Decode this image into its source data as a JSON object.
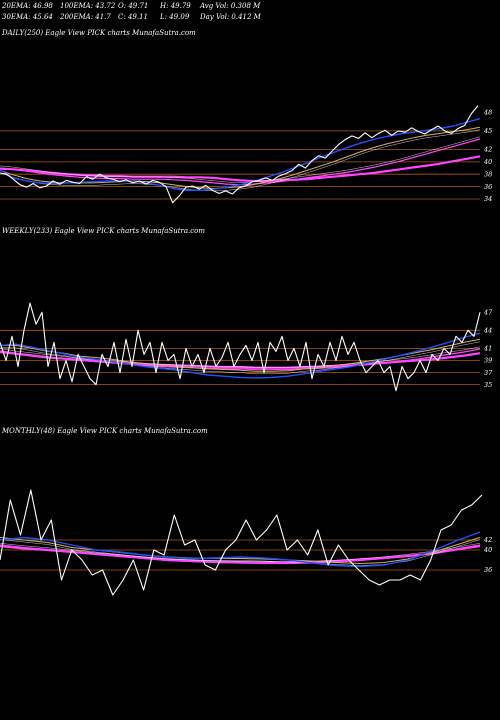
{
  "header": {
    "row1": [
      {
        "name": "20ema",
        "text": "20EMA: 46.98"
      },
      {
        "name": "100ema",
        "text": "100EMA: 43.72"
      },
      {
        "name": "open",
        "text": "O: 49.71"
      },
      {
        "name": "high",
        "text": "H: 49.79"
      },
      {
        "name": "avg-vol",
        "text": "Avg Vol: 0.308  M"
      }
    ],
    "row2": [
      {
        "name": "30ema",
        "text": "30EMA: 45.64"
      },
      {
        "name": "200ema",
        "text": "200EMA: 41.7"
      },
      {
        "name": "close",
        "text": "C: 49.11"
      },
      {
        "name": "low",
        "text": "L: 49.09"
      },
      {
        "name": "day-vol",
        "text": "Day Vol: 0.412  M"
      }
    ]
  },
  "colors": {
    "background": "#000000",
    "price": "#ffffff",
    "ema_short": "#2050ff",
    "ema_mid": "#d4b060",
    "ema_long": "#ff44ff",
    "ema_thin": "#ffffff",
    "level": "#b05a12"
  },
  "chart_data": [
    {
      "type": "line",
      "title": "DAILY(250) Eagle  View  PICK charts MunafaSutra.com",
      "y_ticks": [
        48,
        45,
        42,
        40,
        38,
        36,
        34
      ],
      "levels": [
        45,
        42,
        40,
        38,
        36,
        34
      ],
      "ylim": [
        30.6,
        50
      ],
      "price": [
        38.2,
        38.0,
        37.2,
        36.3,
        35.9,
        36.5,
        35.8,
        36.1,
        36.9,
        36.4,
        37.0,
        36.7,
        36.5,
        37.6,
        37.2,
        38.0,
        37.4,
        37.2,
        36.8,
        37.1,
        36.6,
        36.9,
        36.4,
        37.0,
        36.7,
        36.0,
        33.4,
        34.5,
        35.9,
        36.1,
        35.6,
        36.2,
        35.4,
        34.9,
        35.3,
        34.8,
        35.8,
        36.1,
        36.8,
        37.0,
        37.4,
        37.0,
        37.7,
        38.1,
        38.6,
        39.6,
        39.0,
        40.2,
        41.0,
        40.6,
        41.7,
        42.8,
        43.6,
        44.2,
        43.8,
        44.7,
        43.9,
        44.6,
        45.1,
        44.3,
        45.0,
        44.8,
        45.5,
        44.9,
        44.5,
        45.2,
        45.8,
        45.0,
        44.6,
        45.4,
        45.9,
        47.8,
        49.1
      ],
      "series": [
        {
          "name": "200EMA",
          "values": [
            38.9,
            38.8,
            38.6,
            38.4,
            38.2,
            38.0,
            37.9,
            37.8,
            37.7,
            37.7,
            37.6,
            37.6,
            37.6,
            37.6,
            37.5,
            37.5,
            37.4,
            37.2,
            37.0,
            36.9,
            36.9,
            37.0,
            37.1,
            37.2,
            37.4,
            37.6,
            37.8,
            38.0,
            38.2,
            38.5,
            38.8,
            39.1,
            39.4,
            39.7,
            40.1,
            40.5,
            40.9
          ]
        },
        {
          "name": "100EMA",
          "values": [
            39.0,
            38.8,
            38.5,
            38.2,
            37.9,
            37.7,
            37.5,
            37.4,
            37.3,
            37.3,
            37.2,
            37.2,
            37.2,
            37.1,
            37.0,
            36.8,
            36.6,
            36.4,
            36.3,
            36.4,
            36.6,
            36.8,
            37.1,
            37.4,
            37.7,
            38.0,
            38.3,
            38.7,
            39.1,
            39.6,
            40.1,
            40.7,
            41.3,
            41.9,
            42.5,
            43.1,
            43.7
          ]
        },
        {
          "name": "30EMA",
          "values": [
            38.6,
            37.9,
            37.3,
            36.9,
            36.7,
            36.6,
            36.6,
            36.6,
            36.7,
            36.8,
            36.9,
            36.8,
            36.6,
            36.3,
            36.0,
            35.8,
            35.7,
            35.8,
            36.0,
            36.3,
            36.8,
            37.3,
            37.9,
            38.6,
            39.3,
            40.0,
            40.8,
            41.6,
            42.3,
            42.9,
            43.4,
            43.9,
            44.3,
            44.6,
            44.9,
            45.2,
            45.6
          ]
        },
        {
          "name": "20EMA",
          "values": [
            38.7,
            37.4,
            36.9,
            36.6,
            36.5,
            36.6,
            36.7,
            36.8,
            36.9,
            36.9,
            36.8,
            36.6,
            36.2,
            35.7,
            35.4,
            35.4,
            35.6,
            35.9,
            36.3,
            36.8,
            37.5,
            38.2,
            39.0,
            39.8,
            40.7,
            41.5,
            42.3,
            43.0,
            43.6,
            44.1,
            44.5,
            44.8,
            45.1,
            45.4,
            45.8,
            46.4,
            47.0
          ]
        }
      ]
    },
    {
      "type": "line",
      "title": "WEEKLY(233) Eagle  View  PICK charts MunafaSutra.com",
      "y_ticks": [
        47,
        44,
        41,
        39,
        37,
        35
      ],
      "levels": [
        44,
        41,
        39,
        37,
        35
      ],
      "ylim": [
        30.8,
        51
      ],
      "price": [
        42.0,
        39.0,
        43.0,
        38.0,
        44.0,
        48.5,
        45.0,
        47.0,
        38.0,
        42.0,
        36.0,
        39.0,
        35.5,
        40.0,
        38.0,
        36.0,
        35.0,
        40.0,
        38.0,
        42.0,
        37.0,
        42.5,
        38.0,
        44.0,
        40.0,
        42.0,
        37.0,
        42.0,
        39.0,
        40.0,
        36.0,
        41.0,
        38.0,
        40.0,
        37.0,
        41.0,
        38.0,
        39.5,
        42.0,
        38.0,
        40.0,
        41.5,
        39.0,
        42.0,
        37.0,
        42.0,
        40.5,
        43.0,
        39.0,
        41.0,
        38.0,
        42.0,
        36.0,
        40.0,
        38.0,
        42.0,
        39.0,
        43.0,
        40.0,
        42.0,
        39.0,
        37.0,
        38.0,
        39.0,
        37.0,
        38.0,
        34.0,
        38.0,
        36.0,
        37.0,
        39.0,
        37.0,
        40.0,
        39.0,
        41.0,
        40.0,
        43.0,
        42.0,
        44.0,
        43.0,
        47.0
      ],
      "series": [
        {
          "name": "200EMA",
          "values": [
            40.4,
            40.1,
            39.8,
            39.5,
            39.3,
            39.1,
            38.9,
            38.7,
            38.5,
            38.4,
            38.3,
            38.2,
            38.1,
            38.0,
            37.9,
            37.9,
            37.8,
            37.8,
            37.8,
            37.9,
            38.0,
            38.1,
            38.2,
            38.4,
            38.6,
            38.8,
            39.0,
            39.2,
            39.5,
            39.8,
            40.2
          ]
        },
        {
          "name": "100EMA",
          "values": [
            40.6,
            40.2,
            39.9,
            39.6,
            39.3,
            39.0,
            38.8,
            38.6,
            38.4,
            38.2,
            38.0,
            37.9,
            37.8,
            37.7,
            37.6,
            37.6,
            37.5,
            37.5,
            37.5,
            37.6,
            37.7,
            37.9,
            38.1,
            38.3,
            38.6,
            38.9,
            39.2,
            39.6,
            40.0,
            40.4,
            40.9
          ]
        },
        {
          "name": "30EMA",
          "values": [
            41.5,
            41.5,
            41.0,
            40.5,
            40.2,
            39.7,
            39.5,
            39.2,
            38.8,
            38.5,
            38.2,
            38.0,
            37.8,
            37.6,
            37.5,
            37.4,
            37.2,
            37.2,
            37.3,
            37.6,
            37.8,
            38.2,
            38.5,
            38.9,
            39.3,
            39.8,
            40.3,
            40.8,
            41.4,
            42.0,
            42.5
          ]
        },
        {
          "name": "20EMA",
          "values": [
            41.5,
            41.7,
            41.2,
            40.6,
            40.1,
            39.5,
            39.2,
            38.8,
            38.4,
            38.0,
            37.7,
            37.4,
            37.0,
            36.6,
            36.4,
            36.2,
            36.1,
            36.2,
            36.4,
            36.8,
            37.2,
            37.6,
            38.0,
            38.6,
            39.2,
            39.8,
            40.5,
            41.2,
            42.0,
            42.8,
            43.5
          ]
        }
      ]
    },
    {
      "type": "line",
      "title": "MONTHLY(48) Eagle  View  PICK charts MunafaSutra.com",
      "y_ticks": [
        42,
        40,
        36
      ],
      "levels": [
        42,
        40,
        36
      ],
      "ylim": [
        28,
        56
      ],
      "price": [
        38.0,
        50.0,
        43.0,
        52.0,
        42.0,
        46.0,
        34.0,
        40.0,
        38.0,
        35.0,
        36.0,
        31.0,
        34.0,
        38.0,
        32.0,
        40.0,
        39.0,
        47.0,
        41.0,
        42.0,
        37.0,
        36.0,
        40.0,
        42.0,
        46.0,
        42.0,
        44.0,
        47.0,
        40.0,
        42.0,
        39.0,
        44.0,
        37.0,
        41.0,
        38.0,
        36.0,
        34.0,
        33.0,
        34.0,
        34.0,
        35.0,
        34.0,
        38.0,
        44.0,
        45.0,
        48.0,
        49.0,
        51.0
      ],
      "series": [
        {
          "name": "200EMA",
          "values": [
            40.8,
            40.3,
            40.0,
            39.6,
            39.2,
            38.8,
            38.4,
            38.0,
            37.8,
            37.6,
            37.5,
            37.5,
            37.5,
            37.6,
            37.8,
            38.1,
            38.4,
            38.8,
            39.3,
            40.1,
            40.8
          ]
        },
        {
          "name": "100EMA",
          "values": [
            41.0,
            40.5,
            40.1,
            39.6,
            39.1,
            38.7,
            38.3,
            37.9,
            37.7,
            37.5,
            37.4,
            37.3,
            37.3,
            37.4,
            37.6,
            37.9,
            38.3,
            38.8,
            39.4,
            40.2,
            41.0
          ]
        },
        {
          "name": "30EMA",
          "values": [
            42.5,
            42.0,
            41.5,
            40.5,
            40.0,
            39.5,
            39.0,
            38.6,
            38.4,
            38.3,
            38.3,
            38.2,
            38.0,
            37.8,
            37.5,
            37.3,
            37.5,
            38.2,
            39.5,
            41.0,
            42.5
          ]
        },
        {
          "name": "20EMA",
          "values": [
            42.0,
            42.5,
            42.0,
            41.0,
            40.0,
            39.6,
            39.0,
            38.5,
            38.3,
            38.4,
            38.6,
            38.4,
            38.0,
            37.4,
            36.9,
            36.7,
            37.0,
            38.0,
            39.8,
            41.8,
            43.6
          ]
        }
      ]
    }
  ]
}
